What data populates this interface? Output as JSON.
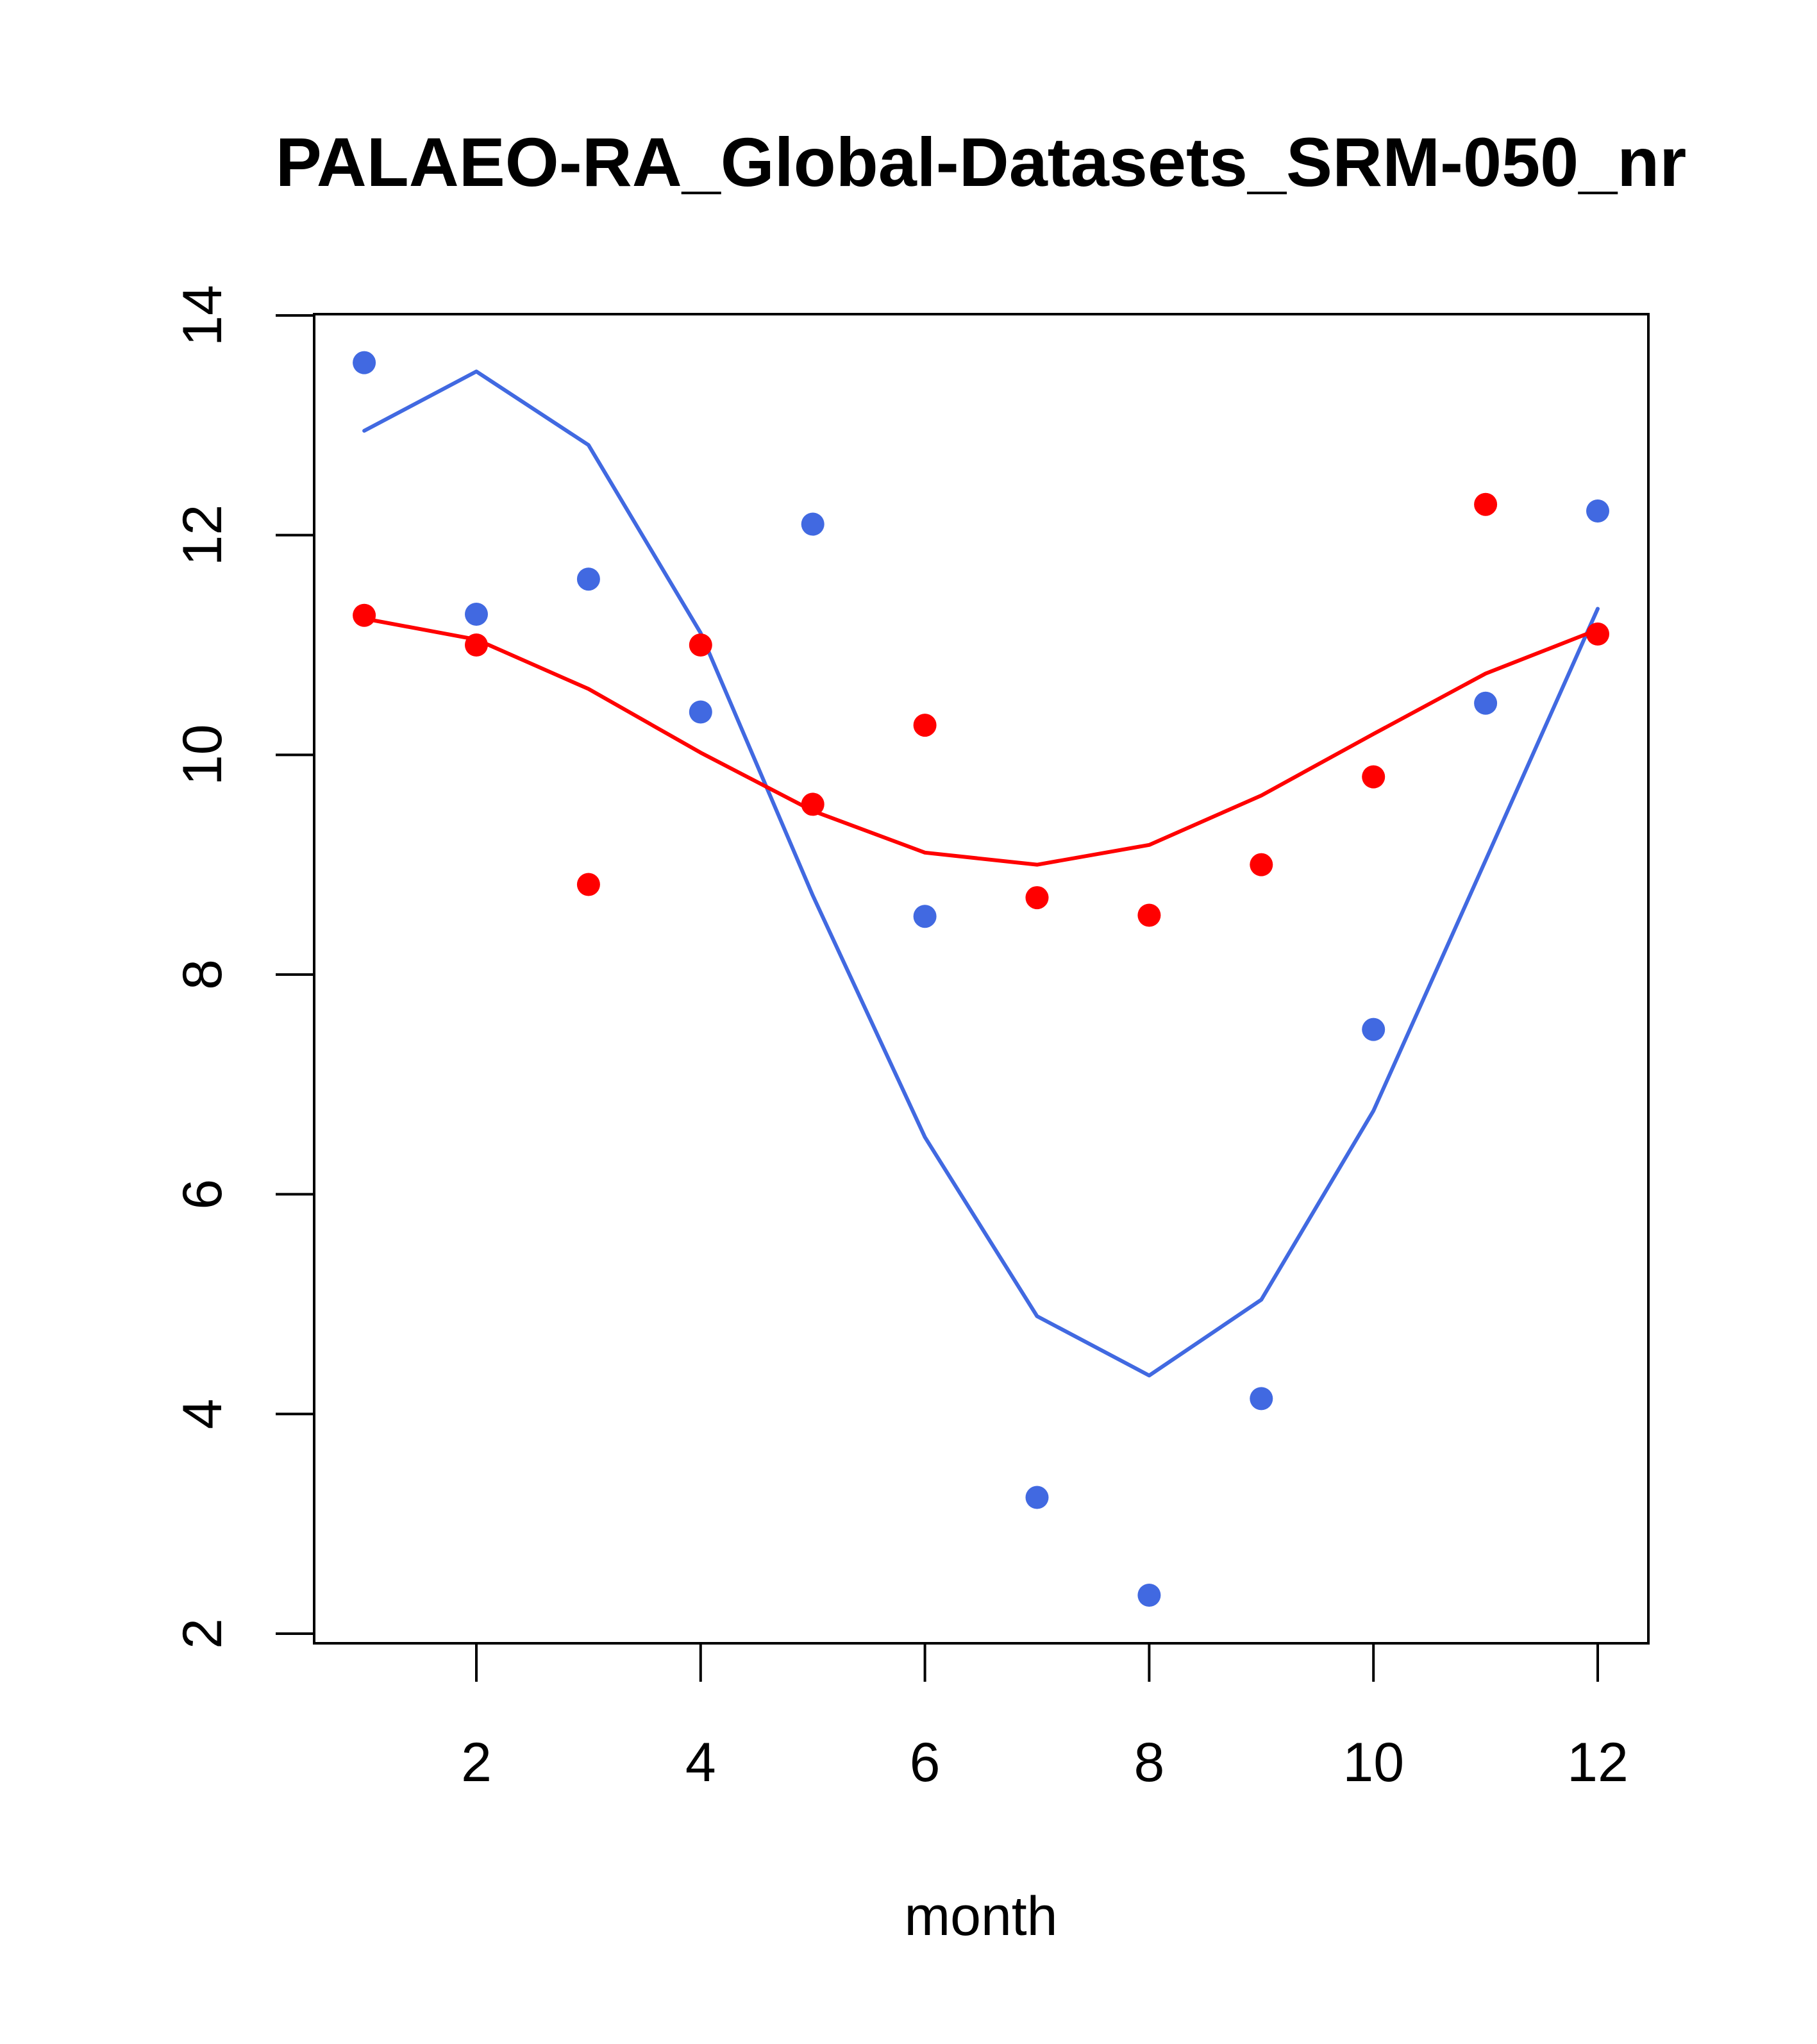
{
  "chart_data": {
    "type": "line",
    "title": "PALAEO-RA_Global-Datasets_SRM-050_nr",
    "xlabel": "month",
    "ylabel": "",
    "xlim": [
      0.57,
      12.43
    ],
    "ylim": [
      1.92,
      14.0
    ],
    "x_ticks": [
      "2",
      "4",
      "6",
      "8",
      "10",
      "12"
    ],
    "y_ticks": [
      "2",
      "4",
      "6",
      "8",
      "10",
      "12",
      "14"
    ],
    "grid": false,
    "x": [
      1,
      2,
      3,
      4,
      5,
      6,
      7,
      8,
      9,
      10,
      11,
      12
    ],
    "series": [
      {
        "name": "blue points",
        "kind": "points",
        "color": "#4169E1",
        "values": [
          13.57,
          11.28,
          11.6,
          10.39,
          12.1,
          8.53,
          3.24,
          2.35,
          4.14,
          7.5,
          10.47,
          12.22
        ]
      },
      {
        "name": "red points",
        "kind": "points",
        "color": "#FF0000",
        "values": [
          11.27,
          11.0,
          8.82,
          11.0,
          9.55,
          10.27,
          8.7,
          8.54,
          9.0,
          9.8,
          12.28,
          11.1
        ]
      },
      {
        "name": "blue line",
        "kind": "line",
        "color": "#4169E1",
        "values": [
          12.95,
          13.49,
          12.82,
          11.11,
          8.72,
          6.52,
          4.89,
          4.35,
          5.04,
          6.76,
          9.04,
          11.33
        ]
      },
      {
        "name": "red line",
        "kind": "line",
        "color": "#FF0000",
        "values": [
          11.24,
          11.05,
          10.6,
          10.02,
          9.49,
          9.11,
          9.0,
          9.18,
          9.63,
          10.19,
          10.74,
          11.14
        ]
      }
    ]
  }
}
